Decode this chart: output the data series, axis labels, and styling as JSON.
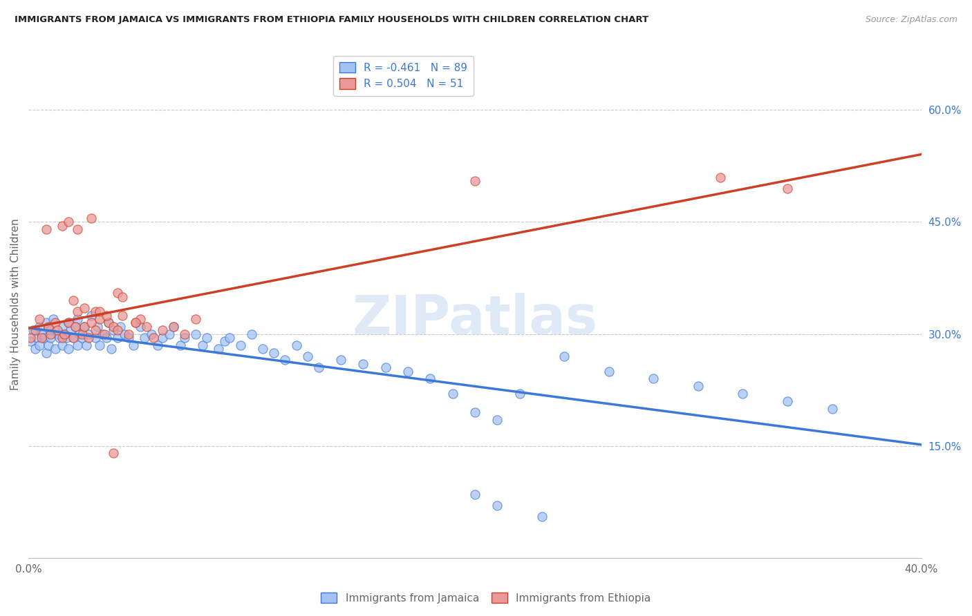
{
  "title": "IMMIGRANTS FROM JAMAICA VS IMMIGRANTS FROM ETHIOPIA FAMILY HOUSEHOLDS WITH CHILDREN CORRELATION CHART",
  "source": "Source: ZipAtlas.com",
  "ylabel": "Family Households with Children",
  "xlim": [
    0.0,
    0.4
  ],
  "ylim": [
    0.0,
    0.68
  ],
  "x_tick_positions": [
    0.0,
    0.1,
    0.2,
    0.3,
    0.4
  ],
  "x_tick_labels": [
    "0.0%",
    "",
    "",
    "",
    "40.0%"
  ],
  "y_ticks_right": [
    0.15,
    0.3,
    0.45,
    0.6
  ],
  "y_tick_labels_right": [
    "15.0%",
    "30.0%",
    "45.0%",
    "60.0%"
  ],
  "legend_jamaica": "Immigrants from Jamaica",
  "legend_ethiopia": "Immigrants from Ethiopia",
  "R_jamaica": -0.461,
  "N_jamaica": 89,
  "R_ethiopia": 0.504,
  "N_ethiopia": 51,
  "color_jamaica": "#a4c2f4",
  "color_ethiopia": "#ea9999",
  "line_color_jamaica": "#3c78d8",
  "line_color_ethiopia": "#cc4125",
  "line_color_dashed": "#a0a0a0",
  "background_color": "#ffffff",
  "watermark": "ZIPatlas",
  "jamaica_x": [
    0.001,
    0.002,
    0.003,
    0.004,
    0.005,
    0.005,
    0.006,
    0.007,
    0.008,
    0.008,
    0.009,
    0.01,
    0.01,
    0.011,
    0.012,
    0.013,
    0.014,
    0.015,
    0.015,
    0.016,
    0.017,
    0.018,
    0.018,
    0.019,
    0.02,
    0.021,
    0.022,
    0.022,
    0.023,
    0.024,
    0.025,
    0.026,
    0.027,
    0.028,
    0.03,
    0.031,
    0.032,
    0.033,
    0.035,
    0.036,
    0.037,
    0.038,
    0.04,
    0.041,
    0.043,
    0.045,
    0.047,
    0.05,
    0.052,
    0.055,
    0.058,
    0.06,
    0.063,
    0.065,
    0.068,
    0.07,
    0.075,
    0.078,
    0.08,
    0.085,
    0.088,
    0.09,
    0.095,
    0.1,
    0.105,
    0.11,
    0.115,
    0.12,
    0.125,
    0.13,
    0.14,
    0.15,
    0.16,
    0.17,
    0.18,
    0.19,
    0.2,
    0.21,
    0.22,
    0.24,
    0.26,
    0.28,
    0.3,
    0.32,
    0.34,
    0.36,
    0.2,
    0.21,
    0.23
  ],
  "jamaica_y": [
    0.29,
    0.305,
    0.28,
    0.295,
    0.285,
    0.31,
    0.3,
    0.295,
    0.315,
    0.275,
    0.285,
    0.305,
    0.295,
    0.32,
    0.28,
    0.3,
    0.295,
    0.31,
    0.285,
    0.3,
    0.295,
    0.315,
    0.28,
    0.305,
    0.295,
    0.31,
    0.285,
    0.32,
    0.3,
    0.295,
    0.31,
    0.285,
    0.3,
    0.325,
    0.295,
    0.31,
    0.285,
    0.3,
    0.295,
    0.315,
    0.28,
    0.305,
    0.295,
    0.31,
    0.3,
    0.295,
    0.285,
    0.31,
    0.295,
    0.3,
    0.285,
    0.295,
    0.3,
    0.31,
    0.285,
    0.295,
    0.3,
    0.285,
    0.295,
    0.28,
    0.29,
    0.295,
    0.285,
    0.3,
    0.28,
    0.275,
    0.265,
    0.285,
    0.27,
    0.255,
    0.265,
    0.26,
    0.255,
    0.25,
    0.24,
    0.22,
    0.195,
    0.185,
    0.22,
    0.27,
    0.25,
    0.24,
    0.23,
    0.22,
    0.21,
    0.2,
    0.085,
    0.07,
    0.055
  ],
  "ethiopia_x": [
    0.001,
    0.003,
    0.005,
    0.006,
    0.008,
    0.009,
    0.01,
    0.012,
    0.013,
    0.015,
    0.016,
    0.018,
    0.02,
    0.021,
    0.022,
    0.024,
    0.025,
    0.027,
    0.028,
    0.03,
    0.032,
    0.034,
    0.036,
    0.038,
    0.04,
    0.042,
    0.045,
    0.048,
    0.05,
    0.053,
    0.056,
    0.06,
    0.065,
    0.07,
    0.075,
    0.02,
    0.025,
    0.03,
    0.035,
    0.04,
    0.015,
    0.018,
    0.022,
    0.028,
    0.032,
    0.038,
    0.042,
    0.048,
    0.2,
    0.31,
    0.34
  ],
  "ethiopia_y": [
    0.295,
    0.305,
    0.32,
    0.295,
    0.44,
    0.31,
    0.3,
    0.315,
    0.305,
    0.295,
    0.3,
    0.315,
    0.295,
    0.31,
    0.33,
    0.3,
    0.31,
    0.295,
    0.315,
    0.305,
    0.32,
    0.3,
    0.315,
    0.31,
    0.305,
    0.325,
    0.3,
    0.315,
    0.32,
    0.31,
    0.295,
    0.305,
    0.31,
    0.3,
    0.32,
    0.345,
    0.335,
    0.33,
    0.325,
    0.355,
    0.445,
    0.45,
    0.44,
    0.455,
    0.33,
    0.14,
    0.35,
    0.315,
    0.505,
    0.51,
    0.495
  ]
}
